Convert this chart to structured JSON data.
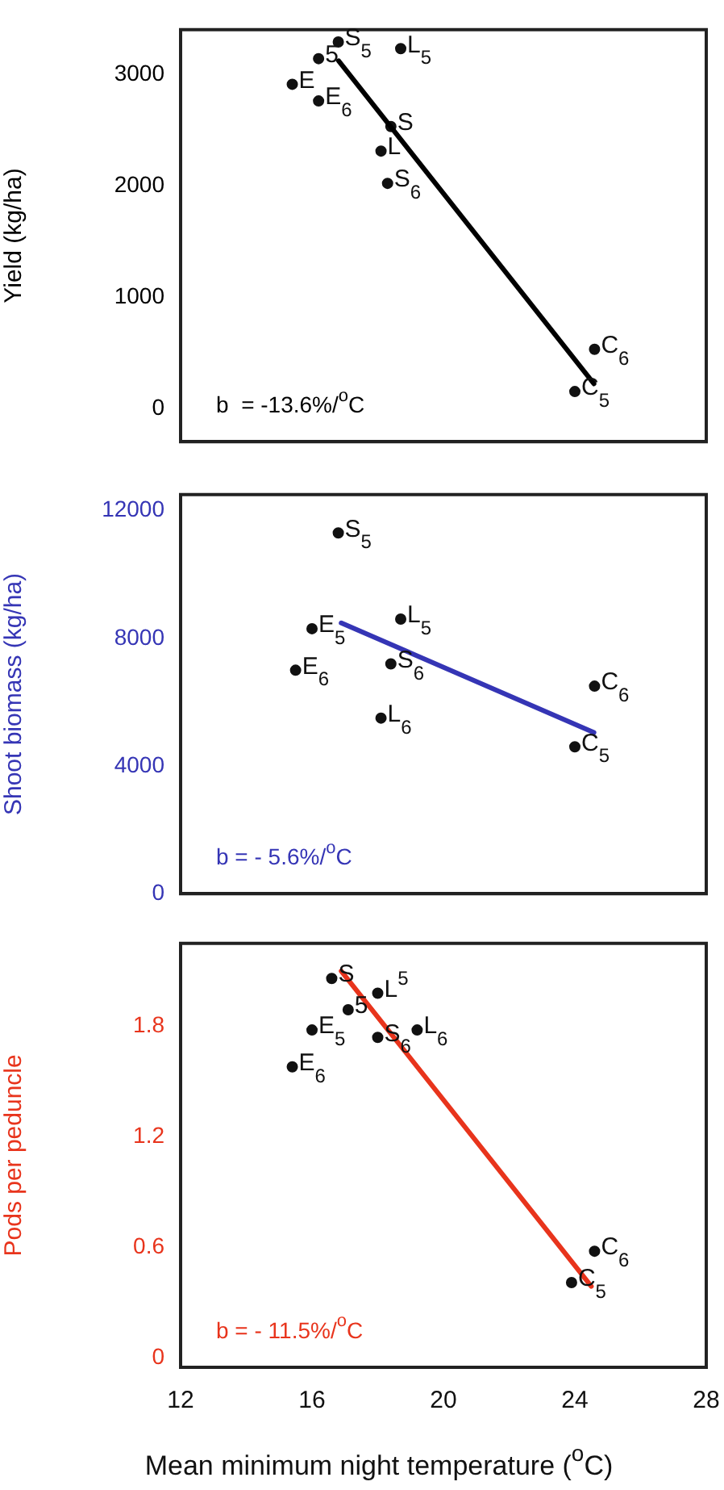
{
  "chart_data": [
    {
      "type": "line",
      "ylabel": "Yield (kg/ha)",
      "xlim": [
        12,
        28
      ],
      "xticks": [
        12,
        16,
        20,
        24,
        28
      ],
      "ylim": [
        -300,
        3400
      ],
      "yticks": [
        0,
        1000,
        2000,
        3000
      ],
      "tick_labels": "y",
      "series": [
        {
          "color": "#000000",
          "x": [
            16.81,
            24.58
          ],
          "values": [
            3120,
            220
          ]
        },
        {
          "type": "scatter",
          "marker": "circle",
          "name": "5",
          "color": "#111111",
          "x": [
            16.2
          ],
          "values": [
            3140
          ]
        },
        {
          "type": "scatter",
          "marker": "circle",
          "name": "S$_{5}$",
          "color": "#111111",
          "x": [
            16.8
          ],
          "values": [
            3290
          ]
        },
        {
          "type": "scatter",
          "marker": "circle",
          "name": "L$_{5}$",
          "color": "#111111",
          "x": [
            18.7
          ],
          "values": [
            3230
          ]
        },
        {
          "type": "scatter",
          "marker": "circle",
          "name": "E",
          "color": "#111111",
          "x": [
            15.4
          ],
          "values": [
            2910
          ]
        },
        {
          "type": "scatter",
          "marker": "circle",
          "name": "E$_{6}$",
          "color": "#111111",
          "x": [
            16.2
          ],
          "values": [
            2760
          ]
        },
        {
          "type": "scatter",
          "marker": "circle",
          "name": "S",
          "color": "#111111",
          "x": [
            18.4
          ],
          "values": [
            2530
          ]
        },
        {
          "type": "scatter",
          "marker": "circle",
          "name": "L",
          "color": "#111111",
          "x": [
            18.1
          ],
          "values": [
            2310
          ]
        },
        {
          "type": "scatter",
          "marker": "circle",
          "name": "S$_{6}$",
          "color": "#111111",
          "x": [
            18.3
          ],
          "values": [
            2020
          ]
        },
        {
          "type": "scatter",
          "marker": "circle",
          "name": "C$_{6}$",
          "color": "#111111",
          "x": [
            24.6
          ],
          "values": [
            530
          ]
        },
        {
          "type": "scatter",
          "marker": "circle",
          "name": "C$_{5}$",
          "color": "#111111",
          "x": [
            24.0
          ],
          "values": [
            150
          ]
        }
      ],
      "annotations": [
        "b  = -13.6%/$^{o}$C"
      ]
    },
    {
      "type": "line",
      "ylabel": "Shoot biomass (kg/ha)",
      "xlim": [
        12,
        28
      ],
      "xticks": [
        12,
        16,
        20,
        24,
        28
      ],
      "ylim": [
        0,
        12500
      ],
      "yticks": [
        0,
        4000,
        8000,
        12000
      ],
      "tick_labels": "y",
      "series": [
        {
          "color": "#3535b5",
          "x": [
            16.89,
            24.58
          ],
          "values": [
            8480,
            5050
          ]
        },
        {
          "type": "scatter",
          "marker": "circle",
          "name": "S$_{5}$",
          "color": "#111111",
          "x": [
            16.8
          ],
          "values": [
            11300
          ]
        },
        {
          "type": "scatter",
          "marker": "circle",
          "name": "E$_{5}$",
          "color": "#111111",
          "x": [
            16.0
          ],
          "values": [
            8300
          ]
        },
        {
          "type": "scatter",
          "marker": "circle",
          "name": "L$_{5}$",
          "color": "#111111",
          "x": [
            18.7
          ],
          "values": [
            8600
          ]
        },
        {
          "type": "scatter",
          "marker": "circle",
          "name": "S$_{6}$",
          "color": "#111111",
          "x": [
            18.4
          ],
          "values": [
            7200
          ]
        },
        {
          "type": "scatter",
          "marker": "circle",
          "name": "E$_{6}$",
          "color": "#111111",
          "x": [
            15.5
          ],
          "values": [
            7000
          ]
        },
        {
          "type": "scatter",
          "marker": "circle",
          "name": "L$_{6}$",
          "color": "#111111",
          "x": [
            18.1
          ],
          "values": [
            5500
          ]
        },
        {
          "type": "scatter",
          "marker": "circle",
          "name": "C$_{6}$",
          "color": "#111111",
          "x": [
            24.6
          ],
          "values": [
            6500
          ]
        },
        {
          "type": "scatter",
          "marker": "circle",
          "name": "C$_{5}$",
          "color": "#111111",
          "x": [
            24.0
          ],
          "values": [
            4600
          ]
        }
      ],
      "annotations": [
        "b = - 5.6%/$^{o}$C"
      ]
    },
    {
      "type": "line",
      "ylabel": "Pods per peduncle",
      "xlabel": "Mean minimum night temperature ($^{o}$C)",
      "xlim": [
        12,
        28
      ],
      "xticks": [
        12,
        16,
        20,
        24,
        28
      ],
      "ylim": [
        -0.05,
        2.25
      ],
      "yticks": [
        0,
        0.6,
        1.2,
        1.8
      ],
      "series": [
        {
          "color": "#e8341c",
          "x": [
            16.89,
            24.5
          ],
          "values": [
            2.1,
            0.39
          ]
        },
        {
          "type": "scatter",
          "marker": "circle",
          "name": "S",
          "color": "#111111",
          "x": [
            16.6
          ],
          "values": [
            2.06
          ]
        },
        {
          "type": "scatter",
          "marker": "circle",
          "name": "5",
          "color": "#111111",
          "x": [
            17.1
          ],
          "values": [
            1.89
          ]
        },
        {
          "type": "scatter",
          "marker": "circle",
          "name": "L$^{5}$",
          "color": "#111111",
          "x": [
            18.0
          ],
          "values": [
            1.98
          ]
        },
        {
          "type": "scatter",
          "marker": "circle",
          "name": "E$_{5}$",
          "color": "#111111",
          "x": [
            16.0
          ],
          "values": [
            1.78
          ]
        },
        {
          "type": "scatter",
          "marker": "circle",
          "name": "L$_{6}$",
          "color": "#111111",
          "x": [
            19.2
          ],
          "values": [
            1.78
          ]
        },
        {
          "type": "scatter",
          "marker": "circle",
          "name": "S$_{6}$",
          "color": "#111111",
          "x": [
            18.0
          ],
          "values": [
            1.74
          ]
        },
        {
          "type": "scatter",
          "marker": "circle",
          "name": "E$_{6}$",
          "color": "#111111",
          "x": [
            15.4
          ],
          "values": [
            1.58
          ]
        },
        {
          "type": "scatter",
          "marker": "circle",
          "name": "C$_{6}$",
          "color": "#111111",
          "x": [
            24.6
          ],
          "values": [
            0.58
          ]
        },
        {
          "type": "scatter",
          "marker": "circle",
          "name": "C$_{5}$",
          "color": "#111111",
          "x": [
            23.9
          ],
          "values": [
            0.41
          ]
        }
      ],
      "annotations": [
        "b = - 11.5%/$^{o}$C"
      ]
    }
  ]
}
